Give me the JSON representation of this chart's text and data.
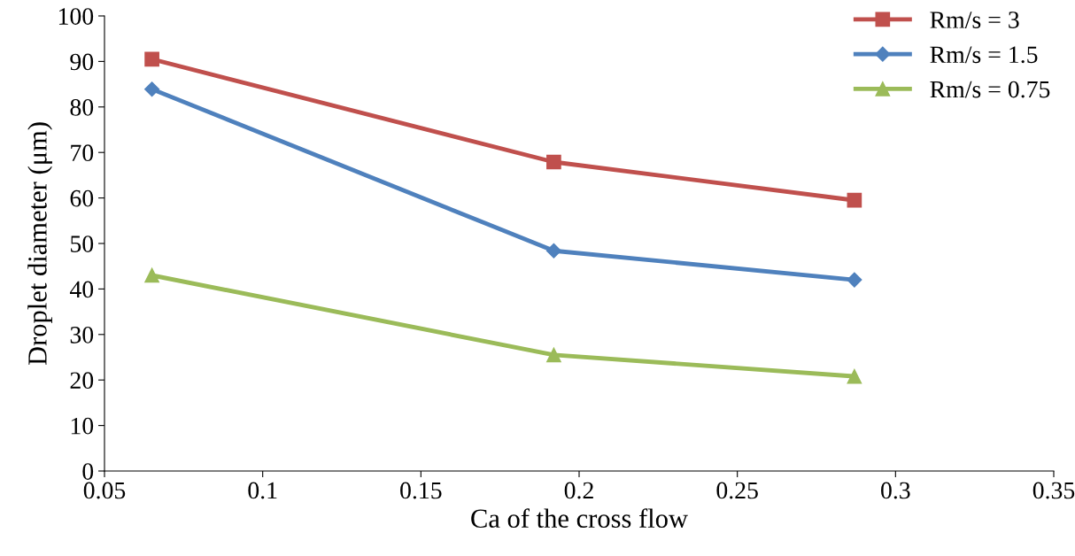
{
  "chart_data": {
    "type": "line",
    "xlabel": "Ca of the cross flow",
    "ylabel": "Droplet diameter (μm)",
    "xlim": [
      0.05,
      0.35
    ],
    "xticks": [
      0.05,
      0.1,
      0.15,
      0.2,
      0.25,
      0.3,
      0.35
    ],
    "ylim": [
      0,
      100
    ],
    "yticks": [
      0,
      10,
      20,
      30,
      40,
      50,
      60,
      70,
      80,
      90,
      100
    ],
    "grid": false,
    "legend": "top right",
    "line_style": "solid",
    "series": [
      {
        "name": "Rm/s = 3",
        "color": "#c0504d",
        "marker": "square",
        "x": [
          0.065,
          0.192,
          0.287
        ],
        "values": [
          90.5,
          67.9,
          59.5
        ]
      },
      {
        "name": "Rm/s = 1.5",
        "color": "#4f81bd",
        "marker": "diamond",
        "x": [
          0.065,
          0.192,
          0.287
        ],
        "values": [
          83.9,
          48.4,
          42.0
        ]
      },
      {
        "name": "Rm/s = 0.75",
        "color": "#9bbb59",
        "marker": "triangle",
        "x": [
          0.065,
          0.192,
          0.287
        ],
        "values": [
          43.0,
          25.5,
          20.8
        ]
      }
    ]
  }
}
